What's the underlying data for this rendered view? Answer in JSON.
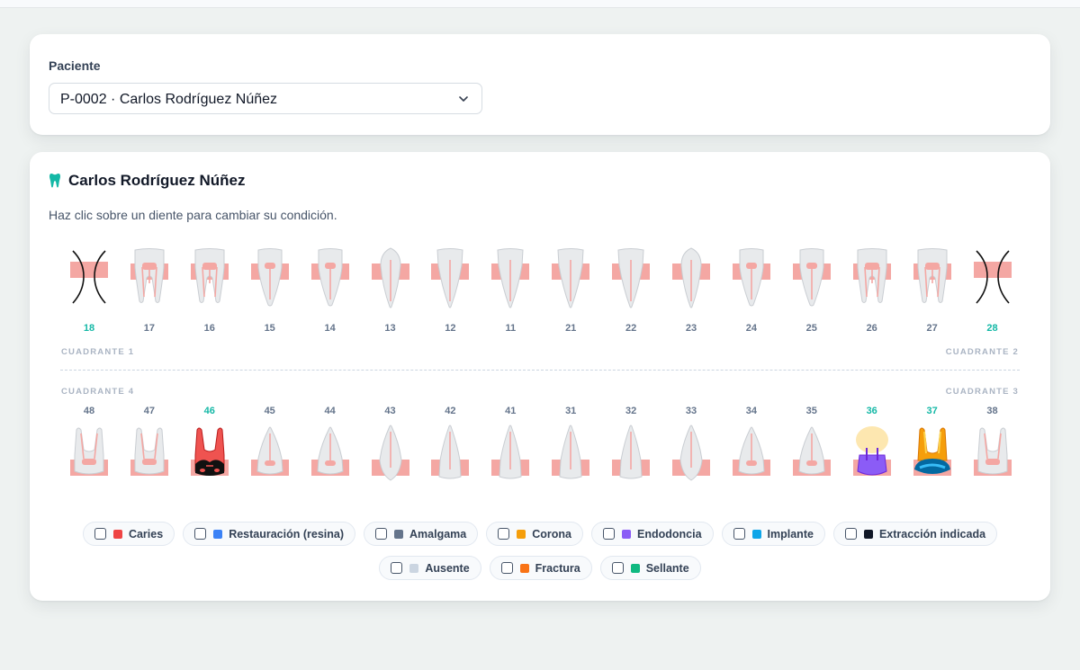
{
  "patient_selector": {
    "label": "Paciente",
    "selected": "P-0002 · Carlos Rodríguez Núñez"
  },
  "chart": {
    "patient_name": "Carlos Rodríguez Núñez",
    "hint": "Haz clic sobre un diente para cambiar su condición.",
    "quadrants": {
      "q1": "CUADRANTE 1",
      "q2": "CUADRANTE 2",
      "q3": "CUADRANTE 3",
      "q4": "CUADRANTE 4"
    },
    "upper_teeth": [
      {
        "number": "18",
        "shape": "molar",
        "condition": "ausente"
      },
      {
        "number": "17",
        "shape": "molar",
        "condition": "sano"
      },
      {
        "number": "16",
        "shape": "molar",
        "condition": "sano"
      },
      {
        "number": "15",
        "shape": "premolar",
        "condition": "sano"
      },
      {
        "number": "14",
        "shape": "premolar",
        "condition": "sano"
      },
      {
        "number": "13",
        "shape": "canine",
        "condition": "sano"
      },
      {
        "number": "12",
        "shape": "incisor",
        "condition": "sano"
      },
      {
        "number": "11",
        "shape": "incisor",
        "condition": "sano"
      },
      {
        "number": "21",
        "shape": "incisor",
        "condition": "sano"
      },
      {
        "number": "22",
        "shape": "incisor",
        "condition": "sano"
      },
      {
        "number": "23",
        "shape": "canine",
        "condition": "sano"
      },
      {
        "number": "24",
        "shape": "premolar",
        "condition": "sano"
      },
      {
        "number": "25",
        "shape": "premolar",
        "condition": "sano"
      },
      {
        "number": "26",
        "shape": "molar",
        "condition": "sano"
      },
      {
        "number": "27",
        "shape": "molar",
        "condition": "sano"
      },
      {
        "number": "28",
        "shape": "molar",
        "condition": "ausente"
      }
    ],
    "lower_teeth": [
      {
        "number": "48",
        "shape": "molar",
        "condition": "sano"
      },
      {
        "number": "47",
        "shape": "molar",
        "condition": "sano"
      },
      {
        "number": "46",
        "shape": "molar",
        "condition": "caries"
      },
      {
        "number": "45",
        "shape": "premolar",
        "condition": "sano"
      },
      {
        "number": "44",
        "shape": "premolar",
        "condition": "sano"
      },
      {
        "number": "43",
        "shape": "canine",
        "condition": "sano"
      },
      {
        "number": "42",
        "shape": "incisor",
        "condition": "sano"
      },
      {
        "number": "41",
        "shape": "incisor",
        "condition": "sano"
      },
      {
        "number": "31",
        "shape": "incisor",
        "condition": "sano"
      },
      {
        "number": "32",
        "shape": "incisor",
        "condition": "sano"
      },
      {
        "number": "33",
        "shape": "canine",
        "condition": "sano"
      },
      {
        "number": "34",
        "shape": "premolar",
        "condition": "sano"
      },
      {
        "number": "35",
        "shape": "premolar",
        "condition": "sano"
      },
      {
        "number": "36",
        "shape": "molar",
        "condition": "endodoncia"
      },
      {
        "number": "37",
        "shape": "molar",
        "condition": "corona"
      },
      {
        "number": "38",
        "shape": "molar",
        "condition": "sano"
      }
    ],
    "highlighted": [
      "18",
      "28",
      "46",
      "36",
      "37"
    ]
  },
  "legend": [
    {
      "label": "Caries",
      "color": "#ef4444",
      "row": 1
    },
    {
      "label": "Restauración (resina)",
      "color": "#3b82f6",
      "row": 1
    },
    {
      "label": "Amalgama",
      "color": "#64748b",
      "row": 1
    },
    {
      "label": "Corona",
      "color": "#f59e0b",
      "row": 1
    },
    {
      "label": "Endodoncia",
      "color": "#8b5cf6",
      "row": 1
    },
    {
      "label": "Implante",
      "color": "#0ea5e9",
      "row": 1
    },
    {
      "label": "Extracción indicada",
      "color": "#111827",
      "row": 1
    },
    {
      "label": "Ausente",
      "color": "#cbd5e1",
      "row": 2
    },
    {
      "label": "Fractura",
      "color": "#f97316",
      "row": 2
    },
    {
      "label": "Sellante",
      "color": "#10b981",
      "row": 2
    }
  ],
  "colors": {
    "accent": "#14b8a6",
    "gum": "#f4a7a3",
    "tooth": "#e8eaec"
  }
}
